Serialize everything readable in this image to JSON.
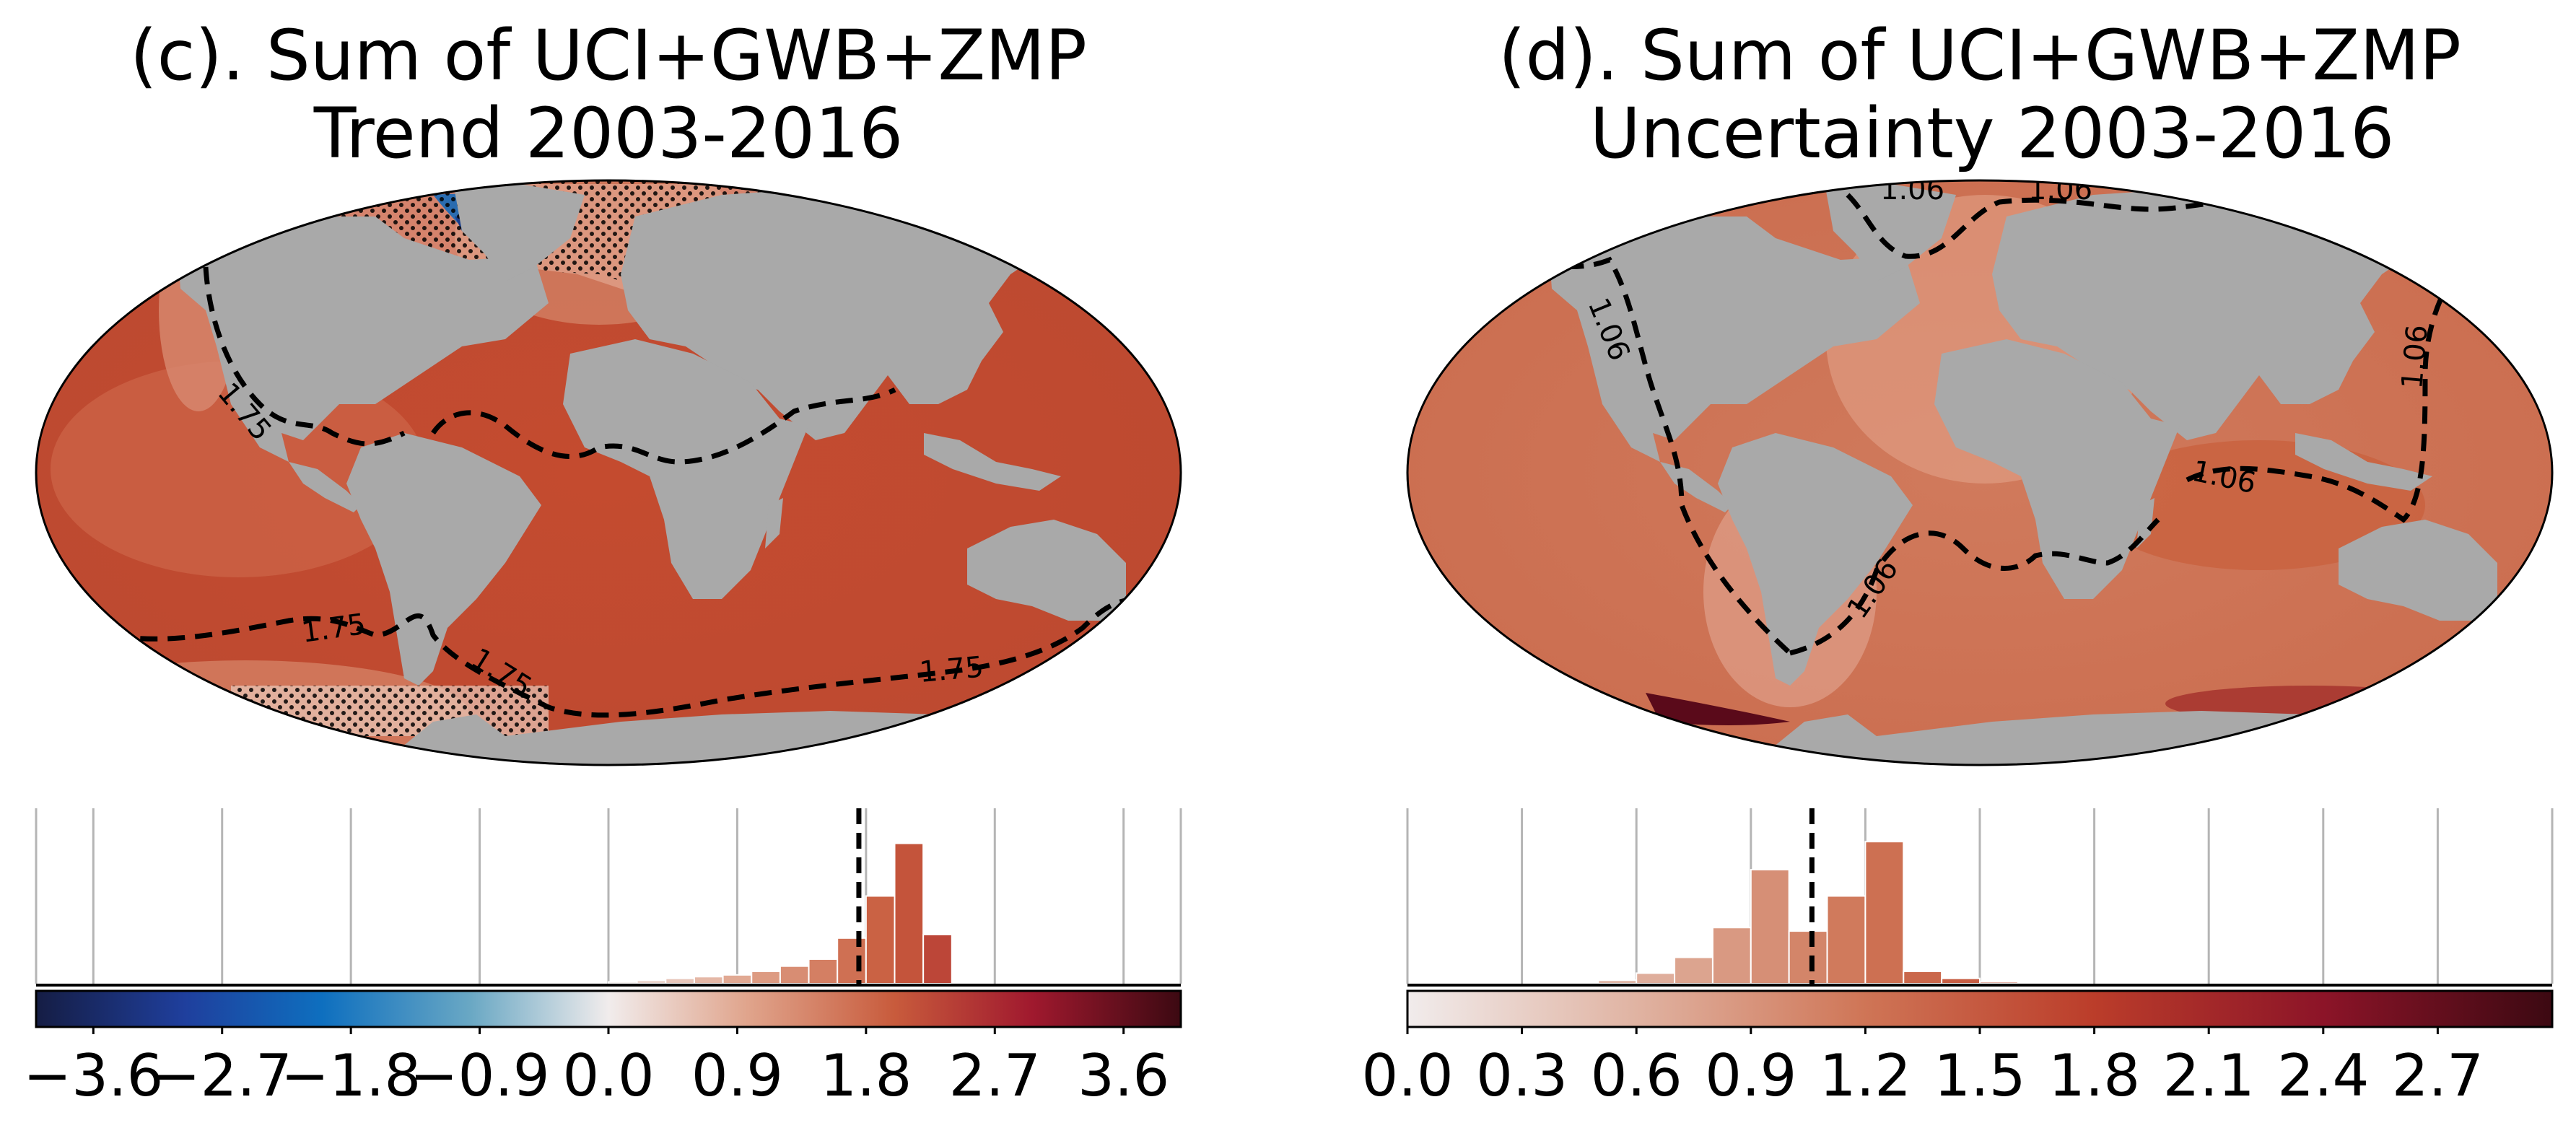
{
  "colors": {
    "land": "#a9a9a9",
    "ocean_main": "#c14a2f",
    "ocean_light": "#d98a6e",
    "ocean_pale": "#ecc6b4",
    "negative_blue": "#2a6cb0",
    "deep_red": "#5a0a1a",
    "contour": "#000000",
    "grid": "#b5b5b5"
  },
  "chart_data": [
    {
      "panel": "c",
      "type": "map",
      "title": "(c). Sum of UCI+GWB+ZMP",
      "subtitle": "Trend 2003-2016",
      "projection": "Robinson",
      "stippling": "Southern Ocean (Drake Passage/Weddell sector) and North Atlantic/Labrador Sea",
      "contour_labels": [
        "1.75",
        "1.75",
        "1.75",
        "1.75"
      ],
      "mean_marker": 1.75,
      "histogram": {
        "type": "bar",
        "bin_width": 0.2,
        "bins": [
          {
            "x": 0.1,
            "h": 0.01
          },
          {
            "x": 0.3,
            "h": 0.02
          },
          {
            "x": 0.5,
            "h": 0.03
          },
          {
            "x": 0.7,
            "h": 0.04
          },
          {
            "x": 0.9,
            "h": 0.05
          },
          {
            "x": 1.1,
            "h": 0.07
          },
          {
            "x": 1.3,
            "h": 0.1
          },
          {
            "x": 1.5,
            "h": 0.14
          },
          {
            "x": 1.7,
            "h": 0.26
          },
          {
            "x": 1.9,
            "h": 0.5
          },
          {
            "x": 2.1,
            "h": 0.8
          },
          {
            "x": 2.3,
            "h": 0.28
          }
        ],
        "xlim": [
          -4.0,
          4.0
        ]
      },
      "colorbar": {
        "ticks": [
          "−3.6",
          "−2.7",
          "−1.8",
          "−0.9",
          "0.0",
          "0.9",
          "1.8",
          "2.7",
          "3.6"
        ],
        "tick_values": [
          -3.6,
          -2.7,
          -1.8,
          -0.9,
          0.0,
          0.9,
          1.8,
          2.7,
          3.6
        ],
        "range": [
          -4.0,
          4.0
        ],
        "colormap": "diverging balance (blue–white–red)"
      }
    },
    {
      "panel": "d",
      "type": "map",
      "title": "(d). Sum of UCI+GWB+ZMP",
      "subtitle": "Uncertainty 2003-2016",
      "projection": "Robinson",
      "contour_labels": [
        "1.06",
        "1.06",
        "1.06",
        "1.06",
        "1.06",
        "1.06"
      ],
      "mean_marker": 1.06,
      "histogram": {
        "type": "bar",
        "bin_width": 0.1,
        "bins": [
          {
            "x": 0.55,
            "h": 0.02
          },
          {
            "x": 0.65,
            "h": 0.06
          },
          {
            "x": 0.75,
            "h": 0.15
          },
          {
            "x": 0.85,
            "h": 0.32
          },
          {
            "x": 0.95,
            "h": 0.65
          },
          {
            "x": 1.05,
            "h": 0.3
          },
          {
            "x": 1.15,
            "h": 0.5
          },
          {
            "x": 1.25,
            "h": 0.81
          },
          {
            "x": 1.35,
            "h": 0.07
          },
          {
            "x": 1.45,
            "h": 0.03
          },
          {
            "x": 1.55,
            "h": 0.01
          }
        ],
        "xlim": [
          0.0,
          3.0
        ]
      },
      "colorbar": {
        "ticks": [
          "0.0",
          "0.3",
          "0.6",
          "0.9",
          "1.2",
          "1.5",
          "1.8",
          "2.1",
          "2.4",
          "2.7"
        ],
        "tick_values": [
          0.0,
          0.3,
          0.6,
          0.9,
          1.2,
          1.5,
          1.8,
          2.1,
          2.4,
          2.7
        ],
        "range": [
          0.0,
          3.0
        ],
        "colormap": "sequential amp (white–red–dark red)"
      }
    }
  ]
}
